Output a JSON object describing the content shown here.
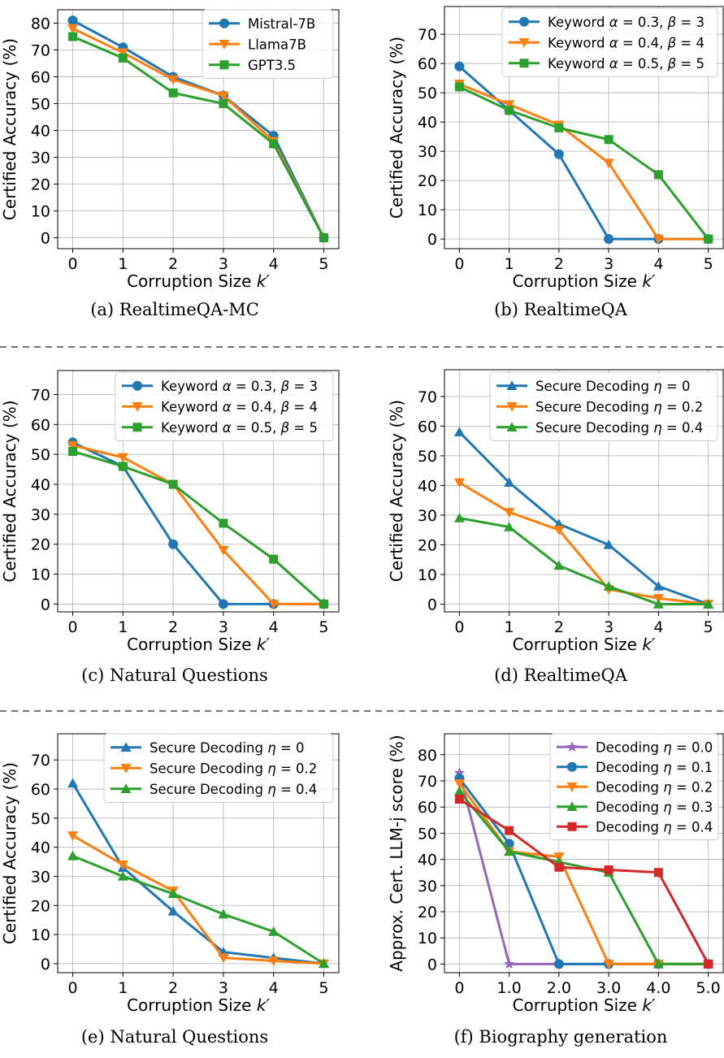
{
  "colors": {
    "blue": "#1f77b4",
    "orange": "#ff7f0e",
    "green": "#2ca02c",
    "red": "#d62728",
    "purple": "#9467bd",
    "grid": "#b0b0b0",
    "separator": "#222222"
  },
  "chart_data": [
    {
      "type": "line",
      "caption": "(a) RealtimeQA-MC",
      "xlabel": "Corruption Size k′",
      "ylabel": "Certified Accuracy (%)",
      "x": [
        0,
        1,
        2,
        3,
        4,
        5
      ],
      "xticks": [
        "0",
        "1",
        "2",
        "3",
        "4",
        "5"
      ],
      "xlim": [
        -0.3,
        5.3
      ],
      "yticks": [
        0,
        10,
        20,
        30,
        40,
        50,
        60,
        70,
        80
      ],
      "ylim": [
        -4.05,
        85
      ],
      "grid": true,
      "legend_position": "top-right",
      "series": [
        {
          "name": "Mistral-7B",
          "color": "#1f77b4",
          "marker": "circle",
          "values": [
            81,
            71,
            60,
            53,
            38,
            0
          ]
        },
        {
          "name": "Llama7B",
          "color": "#ff7f0e",
          "marker": "triangle-down",
          "values": [
            78,
            69,
            59,
            53,
            36,
            0
          ]
        },
        {
          "name": "GPT3.5",
          "color": "#2ca02c",
          "marker": "square",
          "values": [
            75,
            67,
            54,
            50,
            35,
            0
          ]
        }
      ]
    },
    {
      "type": "line",
      "caption": "(b) RealtimeQA",
      "xlabel": "Corruption Size k′",
      "ylabel": "Certified Accuracy (%)",
      "x": [
        0,
        1,
        2,
        3,
        4,
        5
      ],
      "xticks": [
        "0",
        "1",
        "2",
        "3",
        "4",
        "5"
      ],
      "xlim": [
        -0.3,
        5.3
      ],
      "yticks": [
        0,
        10,
        20,
        30,
        40,
        50,
        60,
        70
      ],
      "ylim": [
        -3.3,
        79.5
      ],
      "grid": true,
      "legend_position": "top-right",
      "series": [
        {
          "name": "Keyword α = 0.3, β = 3",
          "color": "#1f77b4",
          "marker": "circle",
          "values": [
            59,
            44,
            29,
            0,
            0,
            0
          ]
        },
        {
          "name": "Keyword α = 0.4, β = 4",
          "color": "#ff7f0e",
          "marker": "triangle-down",
          "values": [
            53,
            46,
            39,
            26,
            0,
            0
          ]
        },
        {
          "name": "Keyword α = 0.5, β = 5",
          "color": "#2ca02c",
          "marker": "square",
          "values": [
            52,
            44,
            38,
            34,
            22,
            0
          ]
        }
      ]
    },
    {
      "type": "line",
      "caption": "(c) Natural Questions",
      "xlabel": "Corruption Size k′",
      "ylabel": "Certified Accuracy (%)",
      "x": [
        0,
        1,
        2,
        3,
        4,
        5
      ],
      "xticks": [
        "0",
        "1",
        "2",
        "3",
        "4",
        "5"
      ],
      "xlim": [
        -0.3,
        5.3
      ],
      "yticks": [
        0,
        10,
        20,
        30,
        40,
        50,
        60,
        70
      ],
      "ylim": [
        -2.6,
        78
      ],
      "grid": true,
      "legend_position": "top-right",
      "series": [
        {
          "name": "Keyword α = 0.3, β = 3",
          "color": "#1f77b4",
          "marker": "circle",
          "values": [
            54,
            46,
            20,
            0,
            0,
            0
          ]
        },
        {
          "name": "Keyword α = 0.4, β = 4",
          "color": "#ff7f0e",
          "marker": "triangle-down",
          "values": [
            53,
            49,
            40,
            18,
            0,
            0
          ]
        },
        {
          "name": "Keyword α = 0.5, β = 5",
          "color": "#2ca02c",
          "marker": "square",
          "values": [
            51,
            46,
            40,
            27,
            15,
            0
          ]
        }
      ]
    },
    {
      "type": "line",
      "caption": "(d) RealtimeQA",
      "xlabel": "Corruption Size k′",
      "ylabel": "Certified Accuracy (%)",
      "x": [
        0,
        1,
        2,
        3,
        4,
        5
      ],
      "xticks": [
        "0",
        "1",
        "2",
        "3",
        "4",
        "5"
      ],
      "xlim": [
        -0.3,
        5.3
      ],
      "yticks": [
        0,
        10,
        20,
        30,
        40,
        50,
        60,
        70
      ],
      "ylim": [
        -2.6,
        79
      ],
      "grid": true,
      "legend_position": "top-right",
      "series": [
        {
          "name": "Secure Decoding η = 0",
          "color": "#1f77b4",
          "marker": "triangle-up",
          "values": [
            58,
            41,
            27,
            20,
            6,
            0
          ]
        },
        {
          "name": "Secure Decoding η = 0.2",
          "color": "#ff7f0e",
          "marker": "triangle-down",
          "values": [
            41,
            31,
            25,
            5,
            2,
            0
          ]
        },
        {
          "name": "Secure Decoding η = 0.4",
          "color": "#2ca02c",
          "marker": "triangle-up",
          "values": [
            29,
            26,
            13,
            6,
            0,
            0
          ]
        }
      ]
    },
    {
      "type": "line",
      "caption": "(e) Natural Questions",
      "xlabel": "Corruption Size k′",
      "ylabel": "Certified Accuracy (%)",
      "x": [
        0,
        1,
        2,
        3,
        4,
        5
      ],
      "xticks": [
        "0",
        "1",
        "2",
        "3",
        "4",
        "5"
      ],
      "xlim": [
        -0.3,
        5.3
      ],
      "yticks": [
        0,
        10,
        20,
        30,
        40,
        50,
        60,
        70
      ],
      "ylim": [
        -3.1,
        79
      ],
      "grid": true,
      "legend_position": "top-right",
      "series": [
        {
          "name": "Secure Decoding η = 0",
          "color": "#1f77b4",
          "marker": "triangle-up",
          "values": [
            62,
            33,
            18,
            4,
            2,
            0
          ]
        },
        {
          "name": "Secure Decoding η = 0.2",
          "color": "#ff7f0e",
          "marker": "triangle-down",
          "values": [
            44,
            34,
            25,
            2,
            1,
            0
          ]
        },
        {
          "name": "Secure Decoding η = 0.4",
          "color": "#2ca02c",
          "marker": "triangle-up",
          "values": [
            37,
            30,
            24,
            17,
            11,
            0
          ]
        }
      ]
    },
    {
      "type": "line",
      "caption": "(f) Biography generation",
      "xlabel": "Corruption Size k′",
      "ylabel": "Approx. Cert. LLM-j score (%)",
      "x": [
        0,
        1,
        2,
        3,
        4,
        5
      ],
      "xticks": [
        "0",
        "1.0",
        "2.0",
        "3.0",
        "4.0",
        "5.0"
      ],
      "xlim": [
        -0.3,
        5.3
      ],
      "yticks": [
        0,
        10,
        20,
        30,
        40,
        50,
        60,
        70,
        80
      ],
      "ylim": [
        -3.3,
        88
      ],
      "grid": true,
      "legend_position": "top-right",
      "series": [
        {
          "name": "Decoding η = 0.0",
          "color": "#9467bd",
          "marker": "star",
          "values": [
            73,
            0,
            0,
            0,
            0,
            0
          ]
        },
        {
          "name": "Decoding η = 0.1",
          "color": "#1f77b4",
          "marker": "circle",
          "values": [
            71,
            46,
            0,
            0,
            0,
            0
          ]
        },
        {
          "name": "Decoding η = 0.2",
          "color": "#ff7f0e",
          "marker": "triangle-down",
          "values": [
            69,
            43,
            41,
            0,
            0,
            0
          ]
        },
        {
          "name": "Decoding η = 0.3",
          "color": "#2ca02c",
          "marker": "triangle-up",
          "values": [
            66,
            43,
            39,
            35,
            0,
            0
          ]
        },
        {
          "name": "Decoding η = 0.4",
          "color": "#d62728",
          "marker": "square",
          "values": [
            63,
            51,
            37,
            36,
            35,
            0
          ]
        }
      ]
    }
  ]
}
